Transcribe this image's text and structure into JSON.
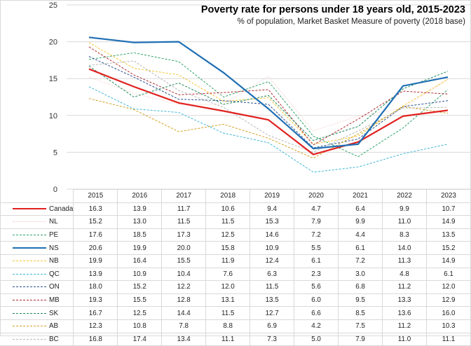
{
  "chart_data": {
    "type": "line",
    "title": "Poverty rate for persons under 18 years old, 2015-2023",
    "subtitle": "% of population, Market Basket Measure of poverty (2018 base)",
    "xlabel": "",
    "ylabel": "",
    "ylim": [
      0,
      25
    ],
    "yticks": [
      "0",
      "5",
      "10",
      "15",
      "20",
      "25"
    ],
    "categories": [
      "2015",
      "2016",
      "2017",
      "2018",
      "2019",
      "2020",
      "2021",
      "2022",
      "2023"
    ],
    "grid": true,
    "legend": "data-table-below",
    "series": [
      {
        "name": "Canada",
        "color": "#e0221f",
        "style": "solid-thick",
        "values": [
          16.3,
          13.9,
          11.7,
          10.6,
          9.4,
          4.7,
          6.4,
          9.9,
          10.7
        ]
      },
      {
        "name": "NL",
        "color": "#f4c6c6",
        "style": "dotted",
        "values": [
          15.2,
          13.0,
          11.5,
          11.5,
          15.3,
          7.9,
          9.9,
          11.0,
          14.9
        ]
      },
      {
        "name": "PE",
        "color": "#2ea36a",
        "style": "dashed",
        "values": [
          17.6,
          18.5,
          17.3,
          12.5,
          14.6,
          7.2,
          4.4,
          8.3,
          13.5
        ]
      },
      {
        "name": "NS",
        "color": "#1f6fb4",
        "style": "solid-thick",
        "values": [
          20.6,
          19.9,
          20.0,
          15.8,
          10.9,
          5.5,
          6.1,
          14.0,
          15.2
        ]
      },
      {
        "name": "NB",
        "color": "#f5c431",
        "style": "dashed",
        "values": [
          19.9,
          16.4,
          15.5,
          11.9,
          12.4,
          6.1,
          7.2,
          11.3,
          14.9
        ]
      },
      {
        "name": "QC",
        "color": "#3bb7d6",
        "style": "dashed",
        "values": [
          13.9,
          10.9,
          10.4,
          7.6,
          6.3,
          2.3,
          3.0,
          4.8,
          6.1
        ]
      },
      {
        "name": "ON",
        "color": "#2a4f8f",
        "style": "dashed",
        "values": [
          18.0,
          15.2,
          12.2,
          12.0,
          11.5,
          5.6,
          6.8,
          11.2,
          12.0
        ]
      },
      {
        "name": "MB",
        "color": "#b02a30",
        "style": "dashed",
        "values": [
          19.3,
          15.5,
          12.8,
          13.1,
          13.5,
          6.0,
          9.5,
          13.3,
          12.9
        ]
      },
      {
        "name": "SK",
        "color": "#1e8a5a",
        "style": "dashed",
        "values": [
          16.7,
          12.5,
          14.4,
          11.5,
          12.7,
          6.6,
          8.5,
          13.6,
          16.0
        ]
      },
      {
        "name": "AB",
        "color": "#d4a020",
        "style": "dashed",
        "values": [
          12.3,
          10.8,
          7.8,
          8.8,
          6.9,
          4.2,
          7.5,
          11.2,
          10.3
        ]
      },
      {
        "name": "BC",
        "color": "#b8b8b8",
        "style": "dashed",
        "values": [
          16.8,
          17.4,
          13.4,
          11.1,
          7.3,
          5.0,
          7.9,
          11.0,
          11.1
        ]
      }
    ]
  }
}
